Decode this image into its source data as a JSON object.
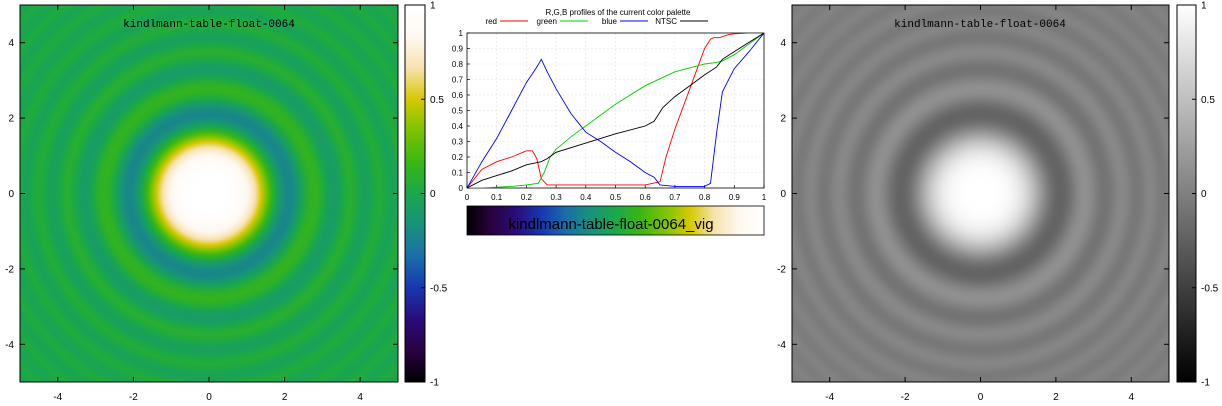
{
  "left_map": {
    "title": "kindlmann-table-float-0064",
    "x_ticks": [
      "-4",
      "-2",
      "0",
      "2",
      "4"
    ],
    "y_ticks": [
      "4",
      "2",
      "0",
      "-2",
      "-4"
    ],
    "cb_ticks": [
      "1",
      "0.5",
      "0",
      "-0.5",
      "-1"
    ]
  },
  "right_map": {
    "title": "kindlmann-table-float-0064",
    "x_ticks": [
      "-4",
      "-2",
      "0",
      "2",
      "4"
    ],
    "y_ticks": [
      "4",
      "2",
      "0",
      "-2",
      "-4"
    ],
    "cb_ticks": [
      "1",
      "0.5",
      "0",
      "-0.5",
      "-1"
    ]
  },
  "palette_bar_label": "kindlmann-table-float-0064_vig",
  "colors": {
    "red": "#ff0000",
    "green": "#00cc00",
    "blue": "#0000ff",
    "ntsc": "#000000",
    "palette": [
      "#000000",
      "#2a0240",
      "#2a0c7a",
      "#1737b0",
      "#1a6ea8",
      "#18927c",
      "#1aa84a",
      "#3ab614",
      "#7cc400",
      "#d6c800",
      "#f8e2b0",
      "#fff8f0",
      "#ffffff"
    ]
  },
  "chart_data": [
    {
      "type": "heatmap",
      "title": "kindlmann-table-float-0064",
      "xlim": [
        -5,
        5
      ],
      "ylim": [
        -5,
        5
      ],
      "zlim": [
        -1,
        1
      ],
      "function": "sin(r^2)/r^2",
      "colormap": "kindlmann-table-float-0064",
      "colorbar_ticks": [
        1,
        0.5,
        0,
        -0.5,
        -1
      ]
    },
    {
      "type": "line",
      "title": "R,G,B profiles of the current color palette",
      "xlim": [
        0,
        1
      ],
      "ylim": [
        0,
        1
      ],
      "x_ticks": [
        "0",
        "0.1",
        "0.2",
        "0.3",
        "0.4",
        "0.5",
        "0.6",
        "0.7",
        "0.8",
        "0.9",
        "1"
      ],
      "y_ticks": [
        "0",
        "0.1",
        "0.2",
        "0.3",
        "0.4",
        "0.5",
        "0.6",
        "0.7",
        "0.8",
        "0.9",
        "1"
      ],
      "grid": true,
      "legend": "top",
      "series": [
        {
          "name": "red",
          "color": "#ff0000",
          "x": [
            0,
            0.05,
            0.1,
            0.15,
            0.2,
            0.22,
            0.235,
            0.25,
            0.27,
            0.3,
            0.4,
            0.5,
            0.6,
            0.65,
            0.67,
            0.7,
            0.75,
            0.8,
            0.82,
            0.83,
            0.85,
            0.88,
            0.9,
            0.95,
            1
          ],
          "y": [
            0,
            0.12,
            0.17,
            0.2,
            0.24,
            0.24,
            0.19,
            0.06,
            0.02,
            0.02,
            0.02,
            0.02,
            0.02,
            0.04,
            0.2,
            0.38,
            0.64,
            0.9,
            0.96,
            0.97,
            0.97,
            0.99,
            0.995,
            1,
            1
          ]
        },
        {
          "name": "green",
          "color": "#00cc00",
          "x": [
            0,
            0.05,
            0.1,
            0.15,
            0.2,
            0.24,
            0.26,
            0.28,
            0.3,
            0.35,
            0.4,
            0.5,
            0.6,
            0.7,
            0.8,
            0.84,
            0.86,
            0.9,
            1
          ],
          "y": [
            0,
            0,
            0.005,
            0.01,
            0.02,
            0.03,
            0.1,
            0.2,
            0.25,
            0.33,
            0.4,
            0.54,
            0.66,
            0.75,
            0.8,
            0.81,
            0.82,
            0.86,
            1
          ]
        },
        {
          "name": "blue",
          "color": "#0000ff",
          "x": [
            0,
            0.05,
            0.1,
            0.15,
            0.2,
            0.235,
            0.25,
            0.27,
            0.3,
            0.35,
            0.4,
            0.45,
            0.5,
            0.55,
            0.6,
            0.63,
            0.65,
            0.7,
            0.8,
            0.82,
            0.84,
            0.86,
            0.9,
            0.95,
            1
          ],
          "y": [
            0,
            0.17,
            0.32,
            0.5,
            0.68,
            0.78,
            0.83,
            0.75,
            0.64,
            0.48,
            0.36,
            0.3,
            0.23,
            0.17,
            0.1,
            0.07,
            0.02,
            0.01,
            0.01,
            0.03,
            0.35,
            0.62,
            0.77,
            0.88,
            1
          ]
        },
        {
          "name": "NTSC",
          "color": "#000000",
          "x": [
            0,
            0.05,
            0.1,
            0.15,
            0.2,
            0.25,
            0.27,
            0.3,
            0.4,
            0.5,
            0.6,
            0.63,
            0.66,
            0.7,
            0.75,
            0.8,
            0.84,
            0.86,
            0.9,
            0.95,
            1
          ],
          "y": [
            0,
            0.05,
            0.08,
            0.11,
            0.15,
            0.17,
            0.19,
            0.23,
            0.29,
            0.35,
            0.4,
            0.43,
            0.52,
            0.59,
            0.66,
            0.73,
            0.78,
            0.83,
            0.88,
            0.94,
            1
          ]
        }
      ]
    },
    {
      "type": "heatmap",
      "title": "kindlmann-table-float-0064",
      "xlim": [
        -5,
        5
      ],
      "ylim": [
        -5,
        5
      ],
      "zlim": [
        -1,
        1
      ],
      "function": "sin(r^2)/r^2",
      "colormap": "grayscale (NTSC luminance)",
      "colorbar_ticks": [
        1,
        0.5,
        0,
        -0.5,
        -1
      ]
    }
  ]
}
